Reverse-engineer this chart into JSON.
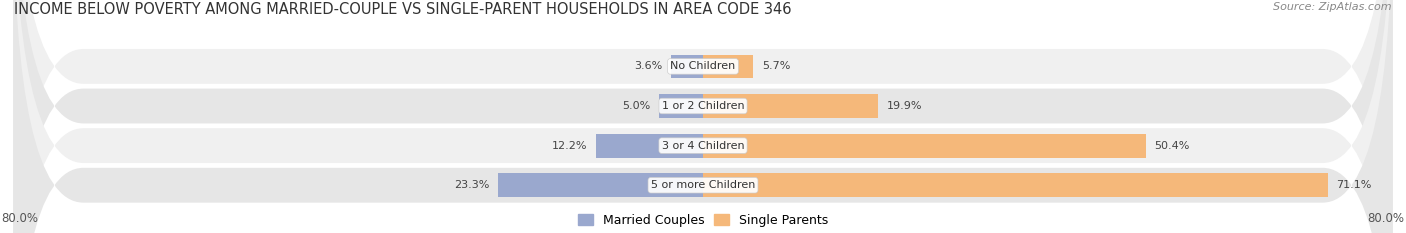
{
  "title": "INCOME BELOW POVERTY AMONG MARRIED-COUPLE VS SINGLE-PARENT HOUSEHOLDS IN AREA CODE 346",
  "source": "Source: ZipAtlas.com",
  "categories": [
    "No Children",
    "1 or 2 Children",
    "3 or 4 Children",
    "5 or more Children"
  ],
  "married_values": [
    3.6,
    5.0,
    12.2,
    23.3
  ],
  "single_values": [
    5.7,
    19.9,
    50.4,
    71.1
  ],
  "married_color": "#9aa8ce",
  "single_color": "#f5b87a",
  "row_bg_even": "#f0f0f0",
  "row_bg_odd": "#e6e6e6",
  "xmin": -80.0,
  "xmax": 80.0,
  "title_fontsize": 10.5,
  "source_fontsize": 8,
  "label_fontsize": 8,
  "category_fontsize": 8,
  "tick_fontsize": 8.5,
  "legend_fontsize": 9
}
